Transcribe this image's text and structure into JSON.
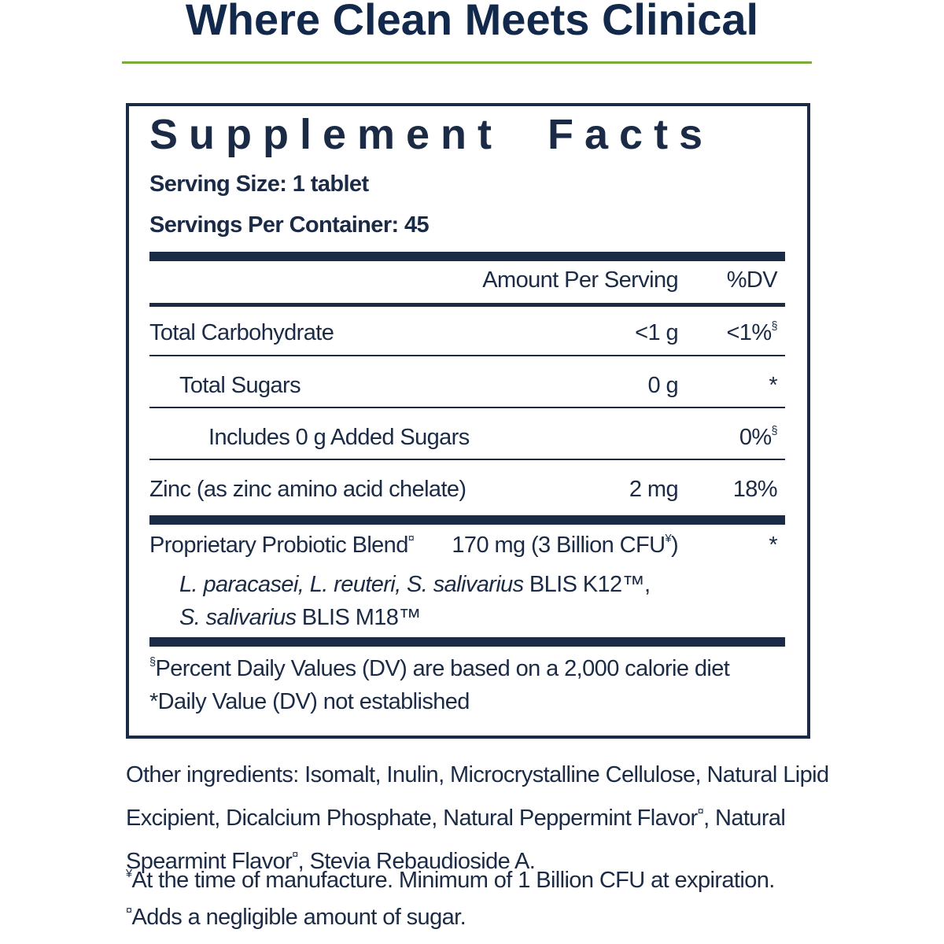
{
  "header": {
    "title": "Where Clean Meets Clinical"
  },
  "facts": {
    "title": "Supplement Facts",
    "serving_size": "Serving Size: 1 tablet",
    "servings_per_container": "Servings Per Container: 45",
    "columns": {
      "amount": "Amount Per Serving",
      "dv": "%DV"
    },
    "rows": [
      {
        "name": "Total Carbohydrate",
        "amount": "<1 g",
        "dv": "<1%",
        "dv_sup": "§"
      },
      {
        "name": "Total Sugars",
        "amount": "0 g",
        "dv": "*"
      },
      {
        "name": "Includes 0 g Added Sugars",
        "dv": "0%",
        "dv_sup": "§"
      },
      {
        "name": "Zinc (as zinc amino acid chelate)",
        "amount": "2 mg",
        "dv": "18%"
      }
    ],
    "blend": {
      "name": "Proprietary Probiotic Blend",
      "name_sup": "¤",
      "amount": "170 mg (3 Billion CFU",
      "amount_sup": "¥",
      "amount_end": ")",
      "dv": "*",
      "strains_1_italic": "L. paracasei, L. reuteri, S. salivarius",
      "strains_1": "BLIS K12™,",
      "strains_2_italic": "S. salivarius",
      "strains_2": "BLIS M18™"
    },
    "footnotes": [
      {
        "sup": "§",
        "text": "Percent Daily Values (DV) are based on a 2,000 calorie diet"
      },
      {
        "text": "*Daily Value (DV) not established"
      }
    ]
  },
  "other": {
    "ingredients_1": "Other ingredients: Isomalt, Inulin, Microcrystalline Cellulose, Natural Lipid Excipient, Dicalcium Phosphate, Natural Peppermint Flavor",
    "sup_1": "¤",
    "ingredients_2": ", Natural Spearmint Flavor",
    "sup_2": "¤",
    "ingredients_3": ", Stevia Rebaudioside A.",
    "notes": [
      {
        "sup": "¥",
        "text": "At the time of manufacture. Minimum of 1 Billion CFU at expiration."
      },
      {
        "sup": "¤",
        "text": "Adds a negligible amount of sugar."
      }
    ]
  }
}
